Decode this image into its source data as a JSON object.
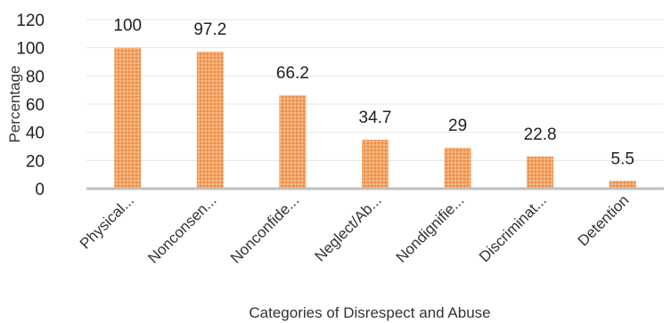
{
  "chart_data": {
    "type": "bar",
    "title": "",
    "xlabel": "Categories of Disrespect and Abuse",
    "ylabel": "Percentage",
    "ylim": [
      0,
      120
    ],
    "yticks": [
      0,
      20,
      40,
      60,
      80,
      100,
      120
    ],
    "grid": true,
    "legend": "none",
    "categories": [
      "Physical...",
      "Nonconsen...",
      "Nonconfide...",
      "Neglect/Ab...",
      "Nondignifie...",
      "Discriminat...",
      "Detention"
    ],
    "values": [
      100,
      97.2,
      66.2,
      34.7,
      29,
      22.8,
      5.5
    ],
    "value_labels": [
      "100",
      "97.2",
      "66.2",
      "34.7",
      "29",
      "22.8",
      "5.5"
    ],
    "colors": {
      "bar_fill": "#f4a460",
      "bar_fill_dark": "#e8833a",
      "grid": "#e6e6e6",
      "axis": "#bfbfbf"
    }
  }
}
